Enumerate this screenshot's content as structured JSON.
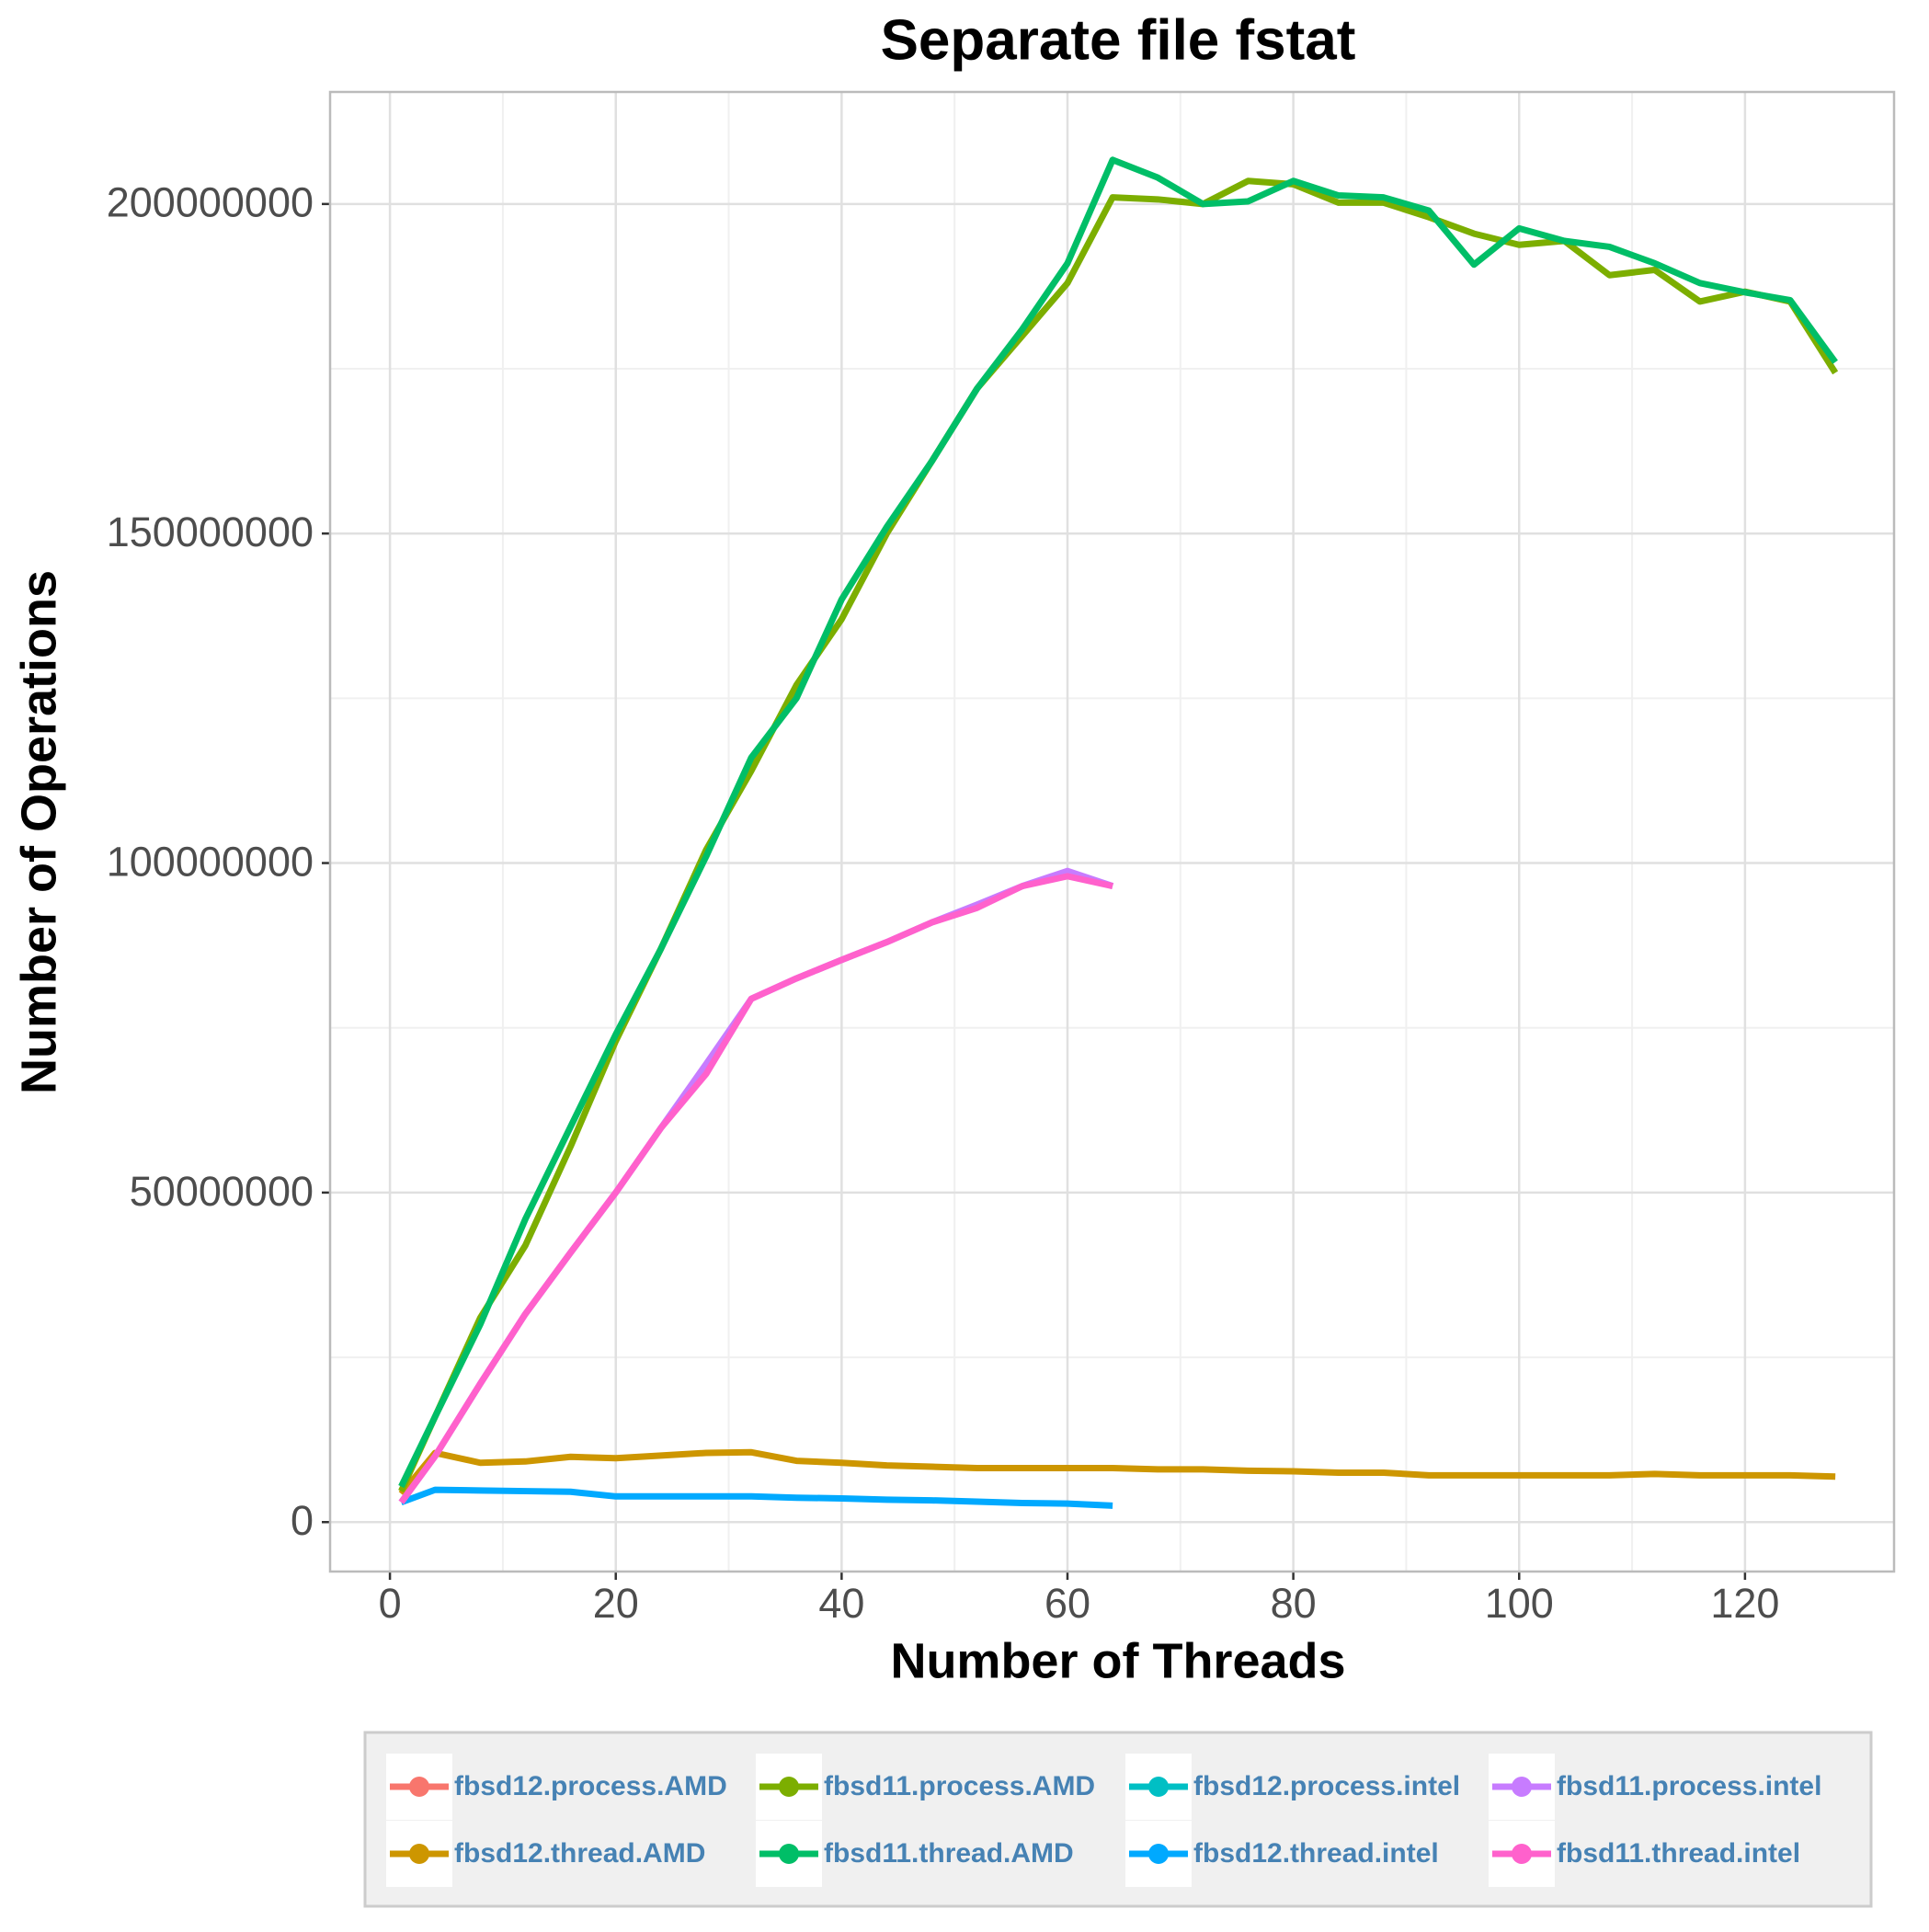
{
  "chart_data": {
    "type": "line",
    "title": "Separate file fstat",
    "x_label": "Number of Threads",
    "y_label": "Number of Operations",
    "x": [
      1,
      4,
      8,
      12,
      16,
      20,
      24,
      28,
      32,
      36,
      40,
      44,
      48,
      52,
      56,
      60,
      64,
      68,
      72,
      76,
      80,
      84,
      88,
      92,
      96,
      100,
      104,
      108,
      112,
      116,
      120,
      124,
      128
    ],
    "xlim": [
      -5.3,
      133.2
    ],
    "xticks": [
      0,
      20,
      40,
      60,
      80,
      100,
      120
    ],
    "ylim": [
      -7500000,
      217000000
    ],
    "yticks": [
      0,
      50000000,
      100000000,
      150000000,
      200000000
    ],
    "grid": true,
    "legend": "bottom",
    "series": [
      {
        "name": "fbsd12.process.AMD",
        "color": "#F8766D",
        "values": [
          null,
          null,
          null,
          null,
          null,
          null,
          null,
          null,
          null,
          null,
          null,
          null,
          null,
          null,
          null,
          null,
          null,
          null,
          null,
          null,
          null,
          null,
          null,
          null,
          null,
          null,
          null,
          null,
          null,
          null,
          null,
          null,
          null
        ]
      },
      {
        "name": "fbsd12.thread.AMD",
        "color": "#CD9600",
        "values": [
          4300000,
          10500000,
          9000000,
          9200000,
          9900000,
          9700000,
          10100000,
          10500000,
          10600000,
          9300000,
          9000000,
          8600000,
          8400000,
          8200000,
          8200000,
          8200000,
          8200000,
          8000000,
          8000000,
          7800000,
          7700000,
          7500000,
          7500000,
          7100000,
          7100000,
          7100000,
          7100000,
          7100000,
          7300000,
          7100000,
          7100000,
          7100000,
          6900000
        ]
      },
      {
        "name": "fbsd11.process.AMD",
        "color": "#7CAE00",
        "values": [
          4700000,
          16000000,
          31000000,
          42000000,
          57000000,
          73000000,
          87000000,
          102000000,
          114000000,
          127000000,
          137000000,
          150000000,
          161000000,
          172000000,
          180000000,
          188000000,
          201000000,
          200700000,
          200000000,
          203500000,
          203000000,
          200200000,
          200200000,
          198000000,
          195500000,
          193800000,
          194400000,
          189200000,
          190000000,
          185200000,
          186700000,
          185200000,
          174400000
        ]
      },
      {
        "name": "fbsd11.thread.AMD",
        "color": "#00BE67",
        "values": [
          5400000,
          16000000,
          30000000,
          46000000,
          60000000,
          74000000,
          87000000,
          101000000,
          116000000,
          125000000,
          140000000,
          151000000,
          161000000,
          172000000,
          181000000,
          191000000,
          206700000,
          204000000,
          200000000,
          200400000,
          203500000,
          201300000,
          201000000,
          199000000,
          190800000,
          196300000,
          194400000,
          193500000,
          191000000,
          188000000,
          186600000,
          185400000,
          176000000
        ]
      },
      {
        "name": "fbsd12.process.intel",
        "color": "#00BFC4",
        "values": [
          null,
          null,
          null,
          null,
          null,
          null,
          null,
          null,
          null,
          null,
          null,
          null,
          null,
          null,
          null,
          null,
          null,
          null,
          null,
          null,
          null,
          null,
          null,
          null,
          null,
          null,
          null,
          null,
          null,
          null,
          null,
          null,
          null
        ]
      },
      {
        "name": "fbsd12.thread.intel",
        "color": "#00A9FF",
        "values": [
          3000000,
          4900000,
          4800000,
          4700000,
          4600000,
          3900000,
          3900000,
          3900000,
          3900000,
          3700000,
          3600000,
          3400000,
          3300000,
          3100000,
          2900000,
          2800000,
          2500000,
          null,
          null,
          null,
          null,
          null,
          null,
          null,
          null,
          null,
          null,
          null,
          null,
          null,
          null,
          null,
          null
        ]
      },
      {
        "name": "fbsd11.process.intel",
        "color": "#C77CFF",
        "values": [
          3000000,
          10000000,
          21000000,
          31600000,
          40900000,
          50000000,
          59800000,
          69500000,
          79400000,
          82500000,
          85300000,
          88000000,
          91000000,
          93700000,
          96500000,
          98800000,
          96500000,
          null,
          null,
          null,
          null,
          null,
          null,
          null,
          null,
          null,
          null,
          null,
          null,
          null,
          null,
          null,
          null
        ]
      },
      {
        "name": "fbsd11.thread.intel",
        "color": "#FF61CC",
        "values": [
          3000000,
          10000000,
          21000000,
          31600000,
          40900000,
          50000000,
          59800000,
          68000000,
          79400000,
          82500000,
          85300000,
          88000000,
          91000000,
          93200000,
          96500000,
          98000000,
          96500000,
          null,
          null,
          null,
          null,
          null,
          null,
          null,
          null,
          null,
          null,
          null,
          null,
          null,
          null,
          null,
          null
        ]
      }
    ]
  }
}
